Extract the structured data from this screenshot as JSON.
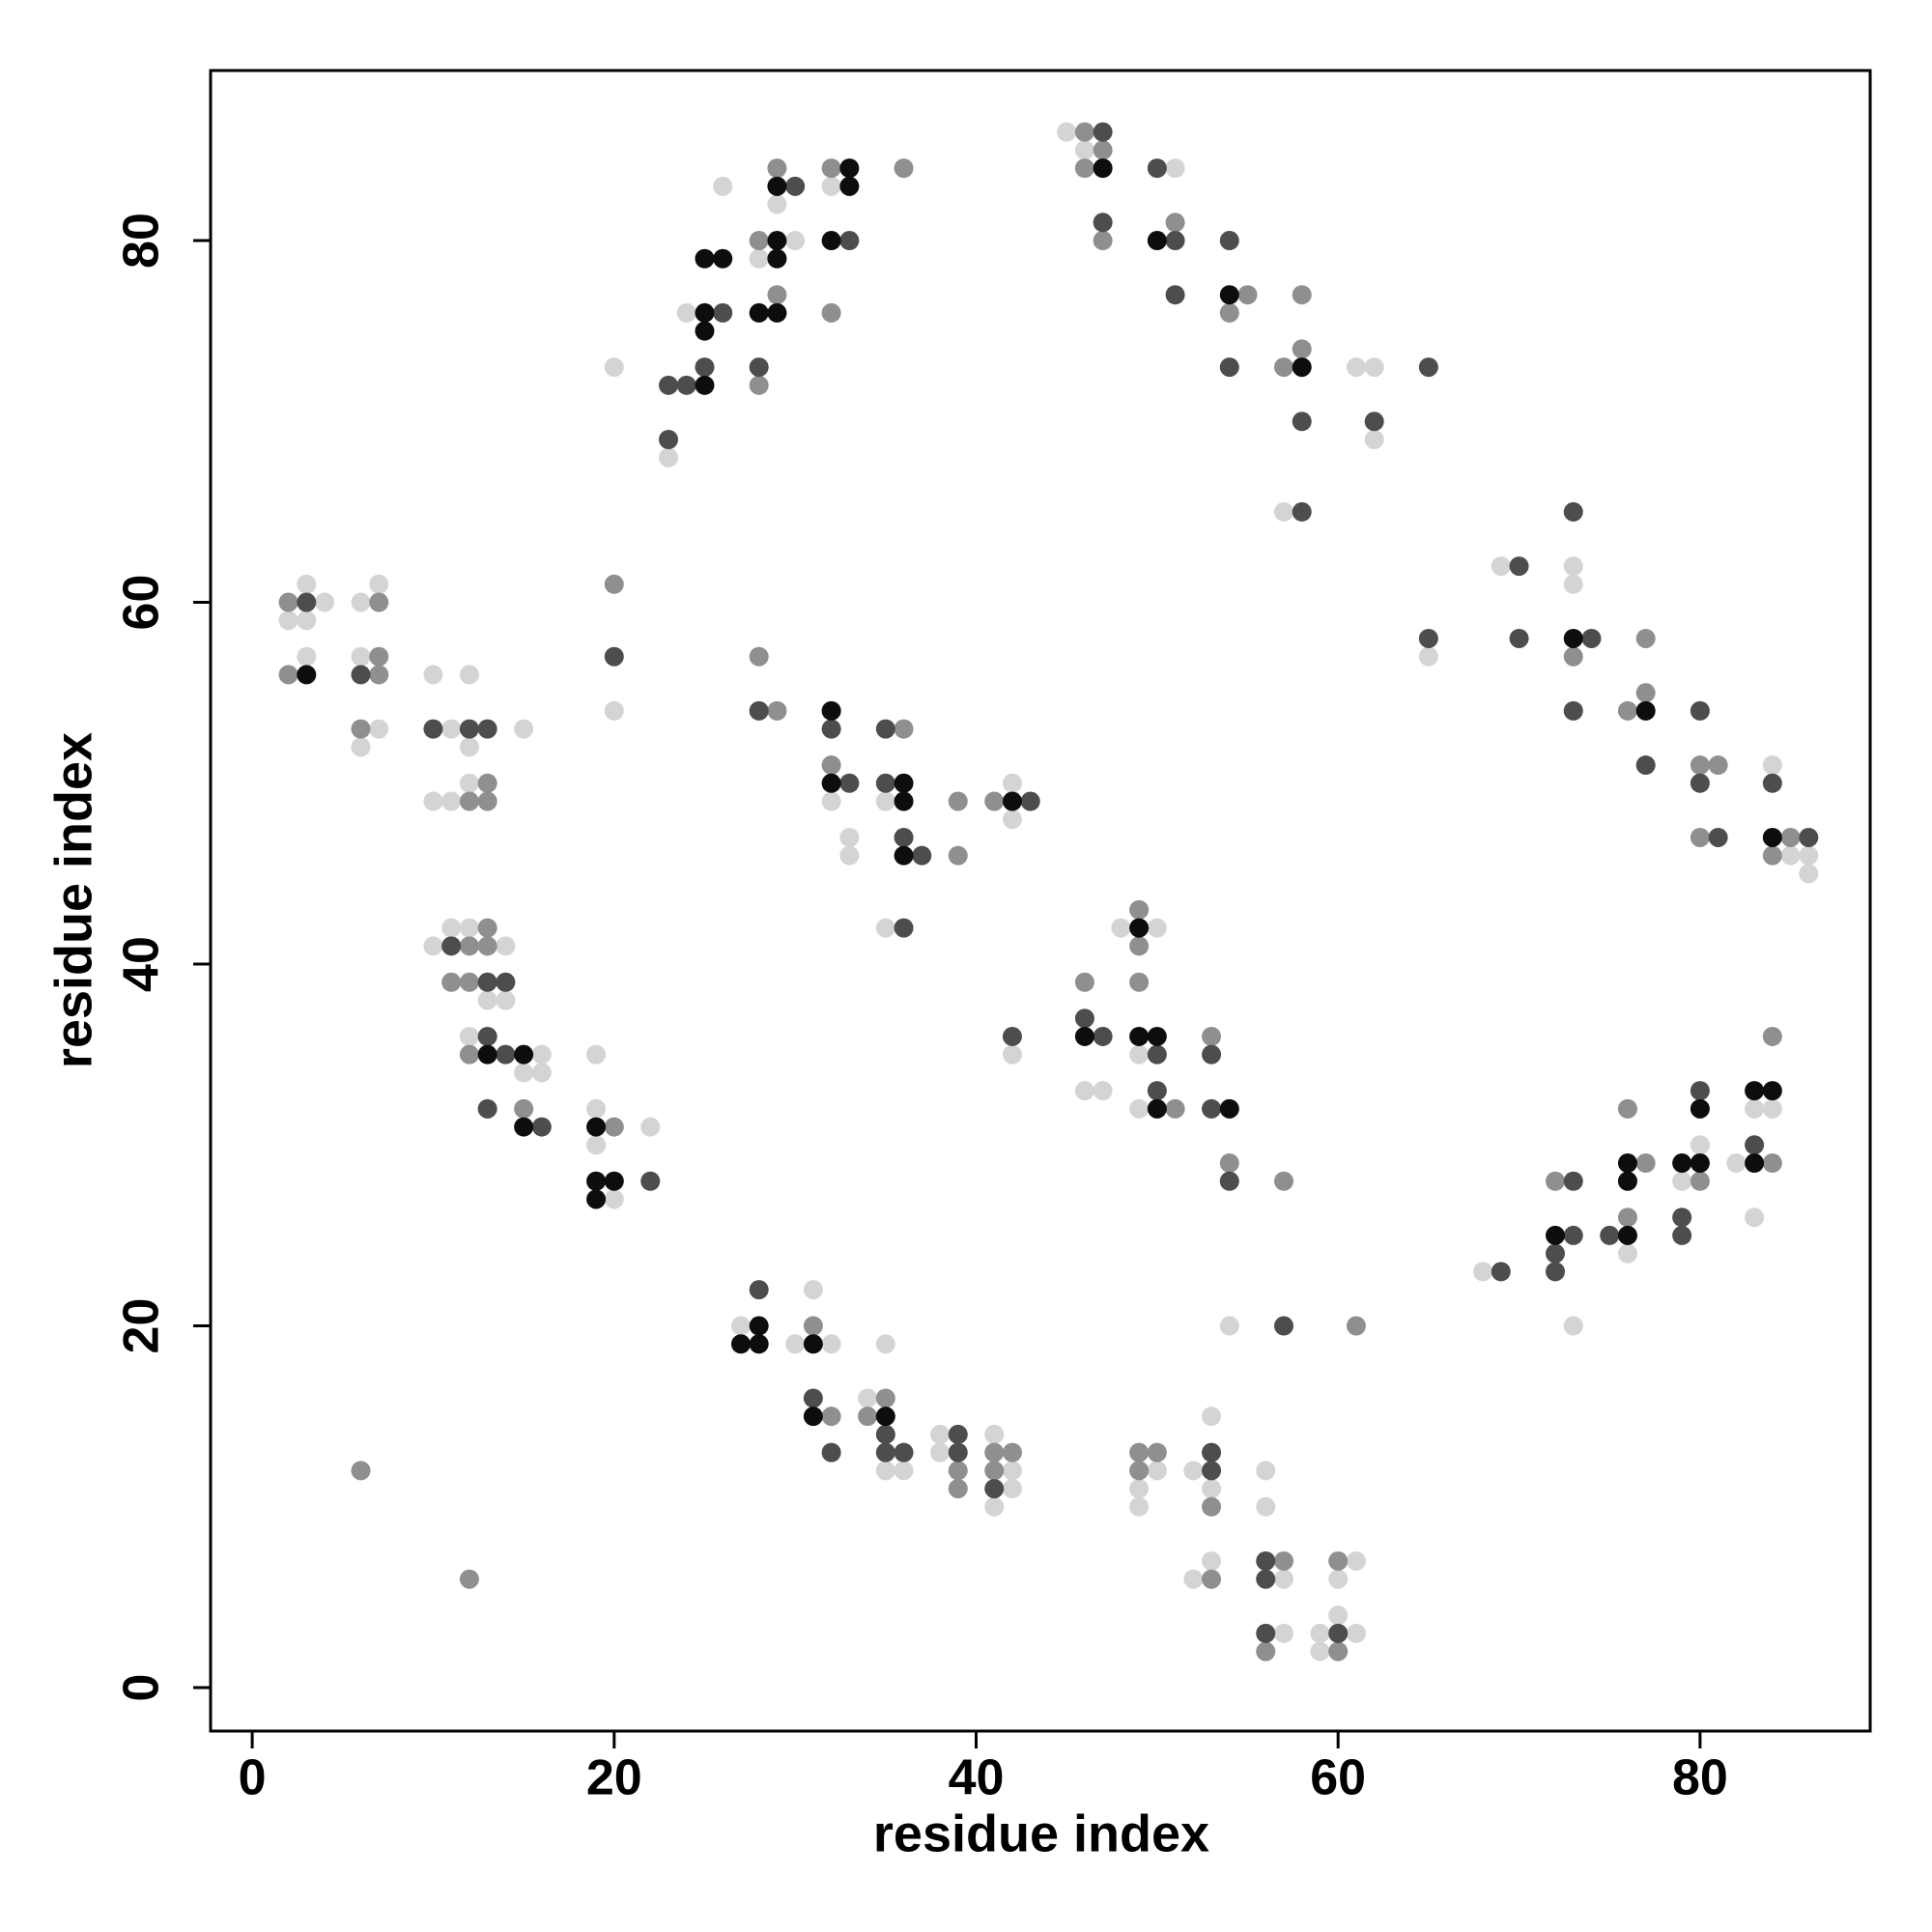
{
  "chart_data": {
    "type": "scatter",
    "xlabel": "residue index",
    "ylabel": "residue index",
    "xlim": [
      -2.3,
      89.4
    ],
    "ylim": [
      -2.4,
      89.4
    ],
    "xticks": [
      0,
      20,
      40,
      60,
      80
    ],
    "yticks": [
      0,
      20,
      40,
      60,
      80
    ],
    "series": [
      {
        "color": "#d4d4d4",
        "x": [
          2,
          3,
          3,
          3,
          4,
          6,
          6,
          6,
          7,
          7,
          10,
          10,
          11,
          11,
          12,
          12,
          12,
          15,
          10,
          11,
          12,
          12,
          13,
          14,
          14,
          15,
          16,
          16,
          19,
          19,
          19,
          20,
          22,
          20,
          20,
          23,
          24,
          26,
          28,
          29,
          30,
          32,
          32,
          33,
          33,
          35,
          35,
          42,
          42,
          42,
          27,
          30,
          31,
          32,
          34,
          35,
          35,
          36,
          38,
          38,
          41,
          41,
          42,
          42,
          45,
          46,
          51,
          57,
          61,
          62,
          62,
          46,
          47,
          48,
          49,
          49,
          50,
          49,
          49,
          50,
          52,
          53,
          53,
          52,
          53,
          54,
          56,
          56,
          57,
          57,
          59,
          59,
          60,
          60,
          61,
          61,
          65,
          69,
          73,
          73,
          84,
          85,
          86,
          86,
          68,
          73,
          76,
          79,
          80,
          82,
          83,
          83,
          84
        ],
        "values": [
          59,
          61,
          59,
          57,
          60,
          60,
          57,
          52,
          61,
          53,
          56,
          49,
          53,
          49,
          56,
          52,
          50,
          53,
          41,
          42,
          42,
          36,
          38,
          41,
          38,
          34,
          35,
          34,
          35,
          32,
          30,
          27,
          31,
          73,
          54,
          68,
          76,
          83,
          79,
          82,
          80,
          83,
          49,
          47,
          46,
          49,
          42,
          50,
          48,
          35,
          20,
          19,
          22,
          19,
          16,
          19,
          12,
          12,
          14,
          13,
          14,
          10,
          12,
          11,
          86,
          85,
          84,
          65,
          73,
          73,
          69,
          33,
          33,
          42,
          35,
          32,
          42,
          11,
          10,
          12,
          12,
          15,
          11,
          6,
          7,
          20,
          12,
          10,
          6,
          3,
          3,
          2,
          6,
          4,
          7,
          3,
          57,
          62,
          62,
          61,
          51,
          46,
          46,
          45,
          23,
          20,
          24,
          28,
          30,
          29,
          26,
          32,
          32
        ]
      },
      {
        "color": "#8f8f8f",
        "x": [
          2,
          2,
          7,
          7,
          7,
          6,
          6,
          12,
          13,
          13,
          12,
          11,
          12,
          12,
          12,
          13,
          13,
          15,
          20,
          20,
          28,
          28,
          29,
          29,
          32,
          32,
          36,
          28,
          29,
          32,
          36,
          39,
          39,
          41,
          31,
          32,
          34,
          35,
          39,
          39,
          41,
          41,
          42,
          46,
          46,
          47,
          47,
          51,
          54,
          55,
          57,
          58,
          58,
          46,
          49,
          49,
          49,
          51,
          53,
          54,
          57,
          49,
          49,
          50,
          53,
          53,
          57,
          56,
          60,
          60,
          61,
          73,
          76,
          77,
          77,
          80,
          80,
          81,
          84,
          85,
          72,
          76,
          76,
          77,
          80,
          84,
          84
        ],
        "values": [
          60,
          56,
          60,
          57,
          56,
          53,
          12,
          49,
          50,
          49,
          6,
          39,
          41,
          39,
          35,
          42,
          41,
          32,
          31,
          61,
          80,
          72,
          84,
          77,
          84,
          76,
          84,
          57,
          54,
          51,
          53,
          49,
          46,
          49,
          20,
          15,
          15,
          16,
          12,
          11,
          13,
          12,
          13,
          86,
          84,
          85,
          80,
          81,
          76,
          77,
          73,
          77,
          74,
          39,
          43,
          41,
          39,
          32,
          36,
          29,
          28,
          13,
          12,
          13,
          10,
          6,
          7,
          2,
          7,
          2,
          20,
          57,
          54,
          58,
          55,
          51,
          47,
          51,
          46,
          47,
          28,
          32,
          26,
          29,
          28,
          36,
          29
        ]
      },
      {
        "color": "#4d4d4d",
        "x": [
          3,
          6,
          10,
          12,
          13,
          11,
          13,
          13,
          13,
          14,
          14,
          16,
          22,
          20,
          23,
          23,
          24,
          25,
          26,
          28,
          30,
          33,
          28,
          32,
          33,
          35,
          35,
          36,
          36,
          37,
          43,
          42,
          28,
          31,
          32,
          35,
          35,
          36,
          39,
          39,
          41,
          47,
          47,
          50,
          51,
          51,
          54,
          54,
          58,
          58,
          62,
          65,
          46,
          47,
          50,
          50,
          53,
          53,
          54,
          53,
          53,
          57,
          56,
          56,
          56,
          60,
          65,
          70,
          70,
          73,
          73,
          74,
          77,
          80,
          80,
          81,
          84,
          86,
          69,
          72,
          72,
          73,
          73,
          75,
          79,
          79,
          80,
          83
        ],
        "values": [
          60,
          56,
          53,
          53,
          53,
          41,
          39,
          36,
          32,
          39,
          35,
          31,
          28,
          57,
          72,
          69,
          72,
          73,
          76,
          73,
          83,
          80,
          54,
          53,
          50,
          53,
          50,
          47,
          42,
          46,
          49,
          36,
          22,
          16,
          13,
          14,
          13,
          13,
          14,
          13,
          11,
          86,
          81,
          84,
          80,
          77,
          80,
          73,
          70,
          65,
          70,
          73,
          37,
          36,
          35,
          33,
          35,
          32,
          28,
          13,
          12,
          20,
          7,
          6,
          3,
          3,
          58,
          62,
          58,
          65,
          54,
          58,
          51,
          54,
          50,
          47,
          50,
          47,
          23,
          24,
          23,
          28,
          25,
          25,
          26,
          25,
          33,
          30
        ]
      },
      {
        "color": "#0d0d0d",
        "x": [
          3,
          13,
          15,
          15,
          19,
          19,
          19,
          20,
          25,
          25,
          25,
          25,
          26,
          28,
          29,
          29,
          29,
          29,
          32,
          33,
          33,
          32,
          32,
          36,
          36,
          36,
          42,
          27,
          28,
          28,
          31,
          31,
          35,
          47,
          50,
          54,
          58,
          46,
          49,
          49,
          50,
          50,
          54,
          73,
          77,
          84,
          72,
          76,
          76,
          76,
          79,
          80,
          80,
          83,
          83,
          84
        ],
        "values": [
          56,
          35,
          35,
          31,
          31,
          28,
          27,
          28,
          79,
          76,
          75,
          72,
          79,
          76,
          83,
          80,
          79,
          76,
          80,
          84,
          83,
          54,
          50,
          50,
          49,
          46,
          49,
          19,
          20,
          19,
          19,
          15,
          15,
          84,
          80,
          77,
          73,
          36,
          42,
          36,
          36,
          32,
          32,
          58,
          54,
          47,
          25,
          29,
          28,
          25,
          29,
          32,
          29,
          33,
          29,
          33
        ]
      }
    ]
  }
}
